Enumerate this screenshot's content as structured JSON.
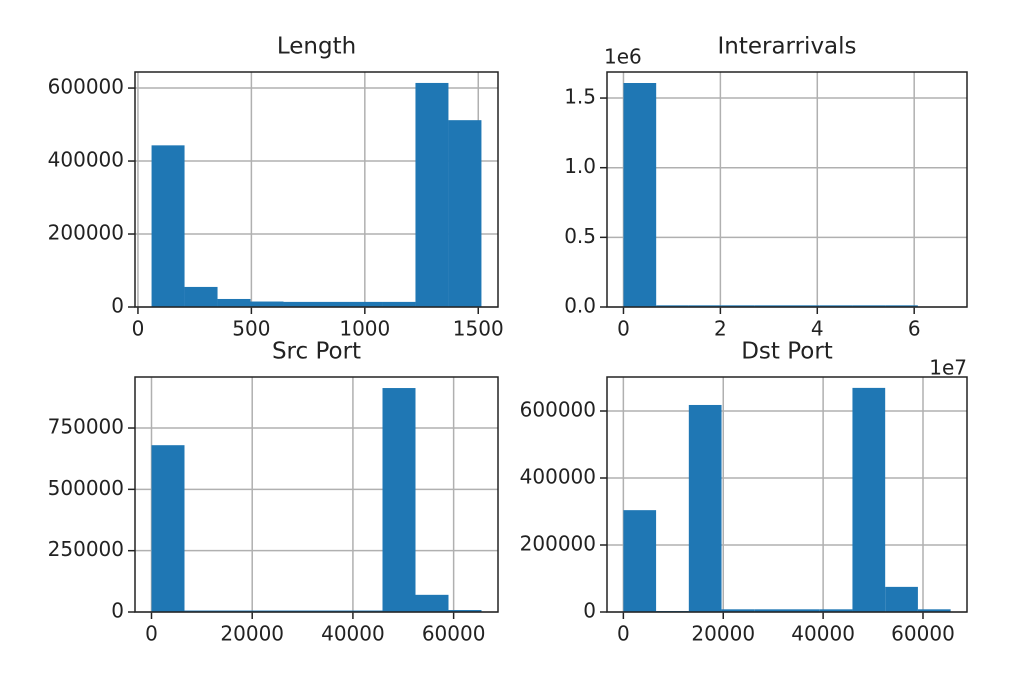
{
  "chart_data": [
    {
      "type": "histogram",
      "title": "Length",
      "color": "#1f77b4",
      "grid": true,
      "bins": [
        60,
        205.4,
        350.8,
        496.2,
        641.6,
        787,
        932.4,
        1077.8,
        1223.2,
        1368.6,
        1514
      ],
      "values": [
        443000,
        55000,
        22000,
        15000,
        14000,
        14000,
        14000,
        14000,
        614000,
        512000
      ],
      "xlim": [
        -13,
        1587
      ],
      "ylim": [
        0,
        644000
      ],
      "xticks": [
        0,
        500,
        1000,
        1500
      ],
      "yticks": [
        0,
        200000,
        400000,
        600000
      ]
    },
    {
      "type": "histogram",
      "title": "Interarrivals",
      "color": "#1f77b4",
      "grid": true,
      "bins": [
        0,
        0.675,
        1.35,
        2.025,
        2.7,
        3.375,
        4.05,
        4.725,
        5.4,
        6.075,
        6.75
      ],
      "values": [
        1.608,
        0.012,
        0.012,
        0.012,
        0.012,
        0.012,
        0.012,
        0.012,
        0.012,
        0
      ],
      "xlim": [
        -0.34,
        7.09
      ],
      "ylim": [
        0,
        1.687
      ],
      "xticks": [
        0,
        2,
        4,
        6
      ],
      "yticks": [
        {
          "value": 0,
          "label": "0.0"
        },
        {
          "value": 0.5,
          "label": "0.5"
        },
        {
          "value": 1,
          "label": "1.0"
        },
        {
          "value": 1.5,
          "label": "1.5"
        }
      ],
      "x_offset_label": "1e7",
      "y_offset_label": "1e6"
    },
    {
      "type": "histogram",
      "title": "Src Port",
      "color": "#1f77b4",
      "grid": true,
      "bins": [
        0,
        6553.5,
        13107,
        19660.5,
        26214,
        32767.5,
        39321,
        45874.5,
        52428,
        58981.5,
        65535
      ],
      "values": [
        680000,
        6000,
        6000,
        6000,
        6000,
        6000,
        6000,
        913000,
        70000,
        8000
      ],
      "xlim": [
        -3277,
        68812
      ],
      "ylim": [
        0,
        958000
      ],
      "xticks": [
        0,
        20000,
        40000,
        60000
      ],
      "yticks": [
        0,
        250000,
        500000,
        750000
      ]
    },
    {
      "type": "histogram",
      "title": "Dst Port",
      "color": "#1f77b4",
      "grid": true,
      "bins": [
        0,
        6553.5,
        13107,
        19660.5,
        26214,
        32767.5,
        39321,
        45874.5,
        52428,
        58981.5,
        65535
      ],
      "values": [
        304000,
        3000,
        618000,
        8000,
        8000,
        8000,
        8000,
        669000,
        75000,
        8000
      ],
      "xlim": [
        -3277,
        68812
      ],
      "ylim": [
        0,
        701500
      ],
      "xticks": [
        0,
        20000,
        40000,
        60000
      ],
      "yticks": [
        0,
        200000,
        400000,
        600000
      ]
    }
  ]
}
